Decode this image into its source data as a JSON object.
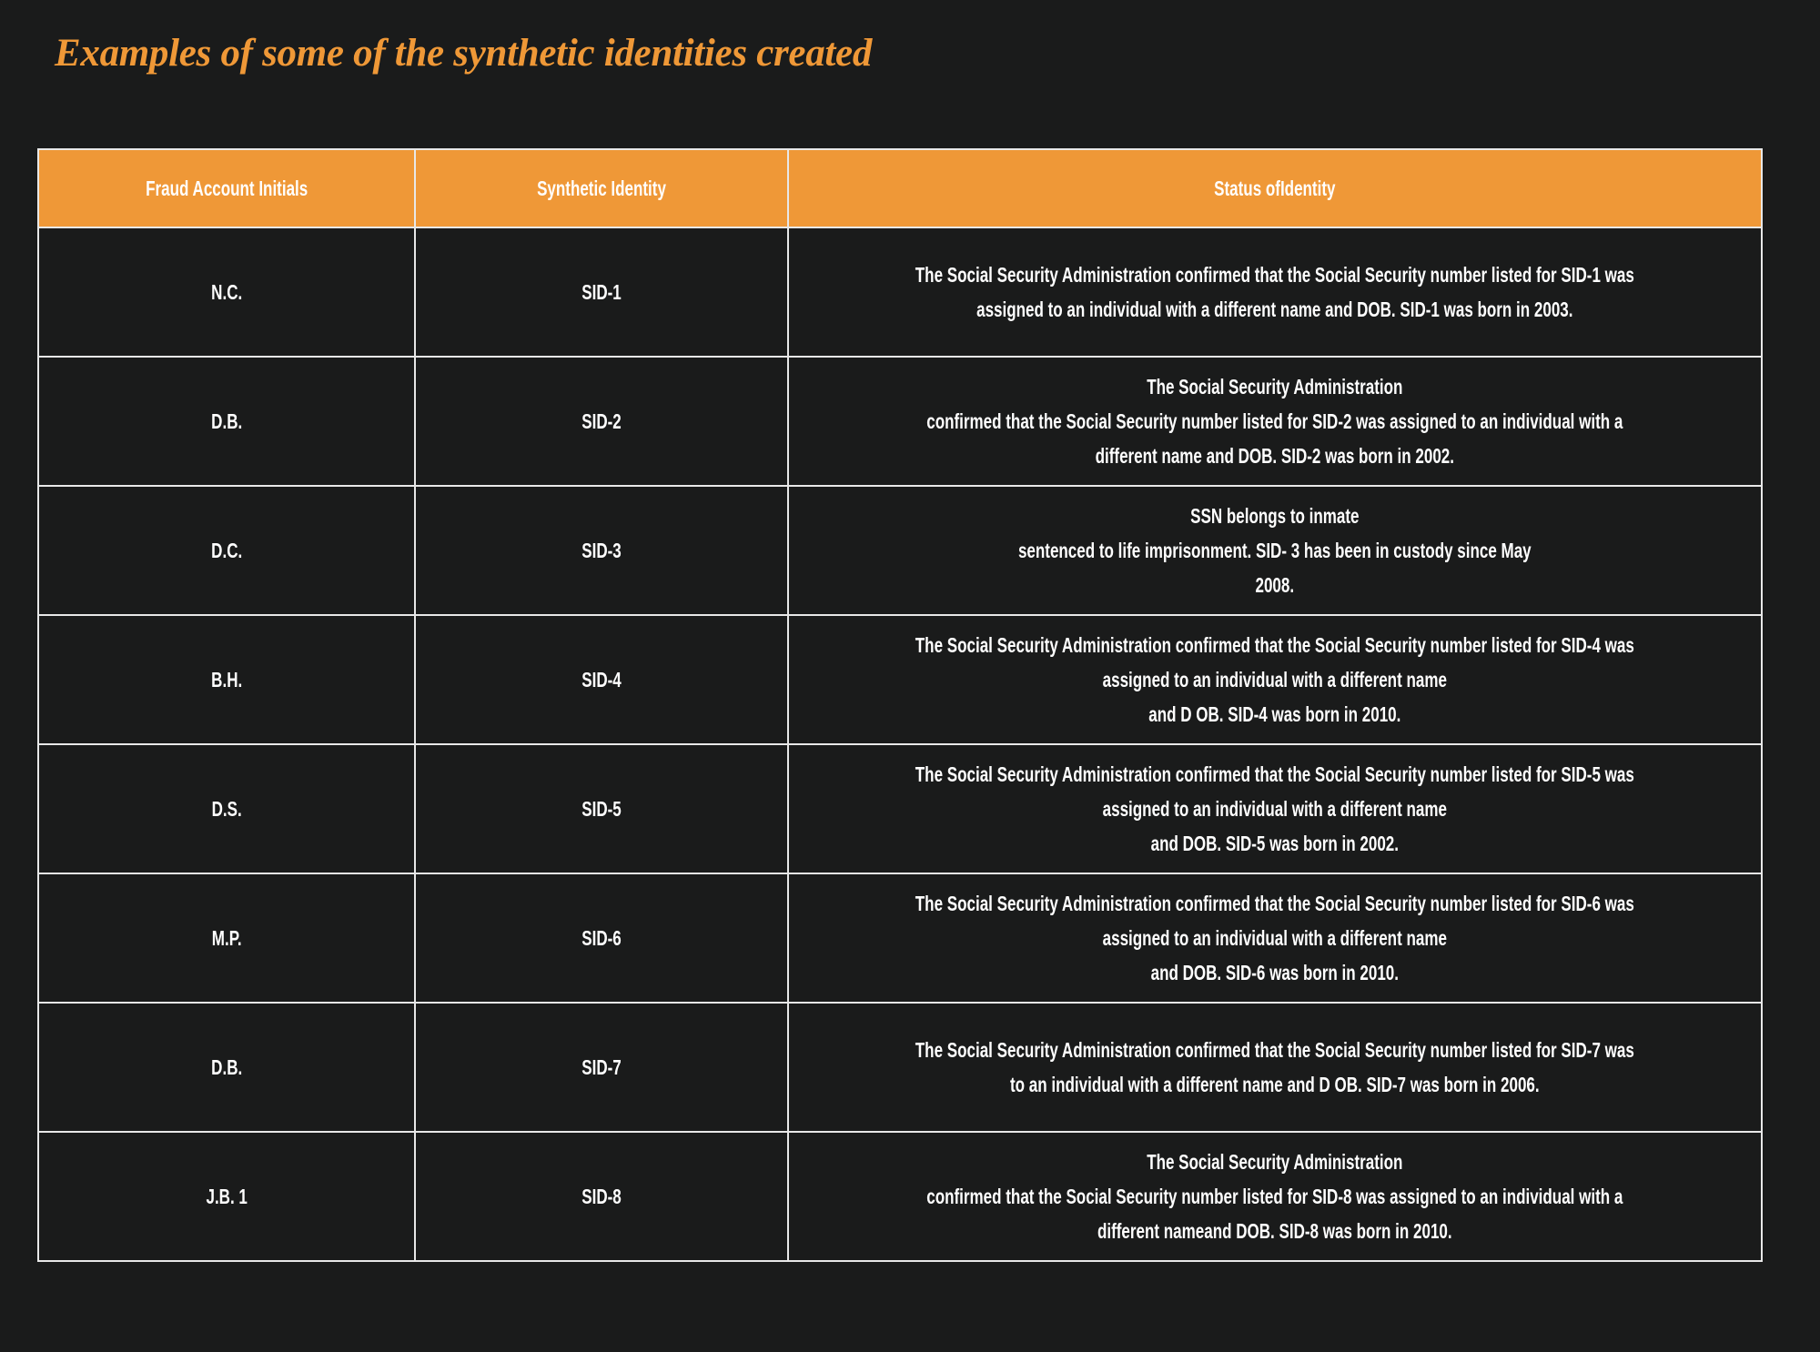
{
  "title": "Examples of  some of the synthetic identities created",
  "colors": {
    "accent": "#ef9837",
    "background": "#1a1b1b",
    "text": "#ffffff"
  },
  "table": {
    "headers": [
      "Fraud Account Initials",
      "Synthetic Identity",
      "Status ofIdentity"
    ],
    "rows": [
      {
        "initials": "N.C.",
        "sid": "SID-1",
        "status": [
          "The Social Security Administration confirmed that the Social Security number listed for SID-1 was",
          "assigned to an individual with a different name and DOB. SID-1 was born in 2003."
        ]
      },
      {
        "initials": "D.B.",
        "sid": "SID-2",
        "status": [
          "The Social Security Administration",
          "confirmed that the Social Security number listed for SID-2 was assigned to an individual with a",
          "different name and DOB. SID-2 was born in 2002."
        ]
      },
      {
        "initials": "D.C.",
        "sid": "SID-3",
        "status": [
          "SSN belongs to inmate",
          "sentenced to life imprisonment. SID- 3 has been in custody since May",
          "2008."
        ]
      },
      {
        "initials": "B.H.",
        "sid": "SID-4",
        "status": [
          "The Social Security Administration confirmed that the Social Security number listed for SID-4 was",
          "assigned to an individual with a different name",
          "and D OB. SID-4 was born in 2010."
        ]
      },
      {
        "initials": "D.S.",
        "sid": "SID-5",
        "status": [
          "The Social Security Administration confirmed that the Social Security number listed for SID-5 was",
          "assigned to an individual with a different name",
          "and DOB. SID-5 was born in 2002."
        ]
      },
      {
        "initials": "M.P.",
        "sid": "SID-6",
        "status": [
          "The Social Security Administration confirmed that the Social Security number listed for SID-6 was",
          "assigned to an individual with a different name",
          "and DOB. SID-6 was born in 2010."
        ]
      },
      {
        "initials": "D.B.",
        "sid": "SID-7",
        "status": [
          "The Social Security Administration confirmed that the Social Security number listed for SID-7 was",
          "to an individual with a different name and D OB. SID-7 was born in 2006."
        ]
      },
      {
        "initials": "J.B. 1",
        "sid": "SID-8",
        "status": [
          "The Social Security Administration",
          "confirmed that the Social Security number listed for SID-8 was assigned to an individual with a",
          "different nameand DOB. SID-8 was born in 2010."
        ]
      }
    ]
  }
}
